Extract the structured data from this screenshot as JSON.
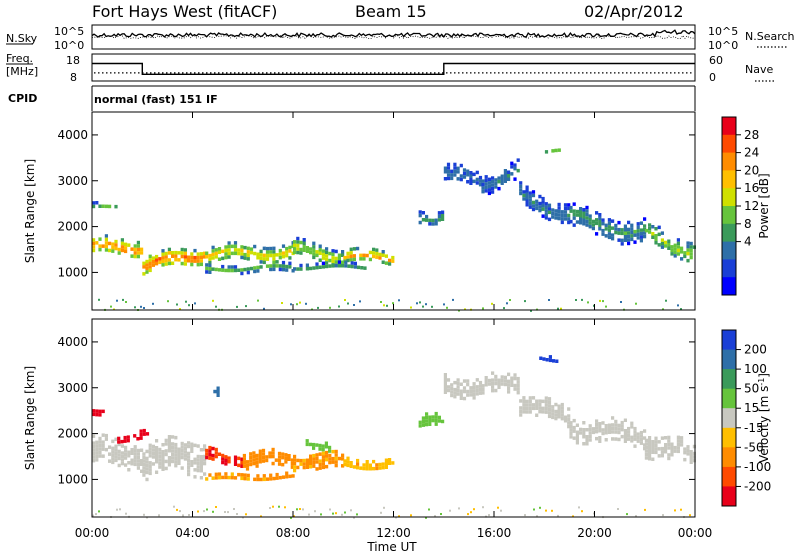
{
  "header": {
    "station": "Fort Hays West (fitACF)",
    "beam": "Beam 15",
    "date": "02/Apr/2012"
  },
  "noise_panel": {
    "left_label": "N.Sky",
    "right_label": "N.Search",
    "left_ticks": [
      "10^5",
      "10^0"
    ],
    "right_ticks": [
      "10^5",
      "10^0"
    ]
  },
  "freq_panel": {
    "left_label_line1": "Freq.",
    "left_label_line2": "[MHz]",
    "right_label": "Nave",
    "left_ticks": [
      "18",
      "8"
    ],
    "right_ticks": [
      "60",
      "0"
    ],
    "freq_steps": [
      {
        "start": 0.0,
        "end": 2.0,
        "value": 14.5
      },
      {
        "start": 2.0,
        "end": 14.0,
        "value": 10.5
      },
      {
        "start": 14.0,
        "end": 24.0,
        "value": 14.5
      }
    ],
    "nave_level": 18
  },
  "cpid": {
    "label": "CPID",
    "mode_text": "normal (fast) 151 IF"
  },
  "color_scales": {
    "power": {
      "label": "Power [dB]",
      "ticks": [
        "28",
        "24",
        "20",
        "16",
        "12",
        "8",
        "4"
      ],
      "colors": [
        "#e8001a",
        "#ff4a00",
        "#ff8c00",
        "#ffbf00",
        "#cfe000",
        "#66c43c",
        "#3a9a5a",
        "#2e6fa8",
        "#1a3fd6",
        "#0000ff"
      ]
    },
    "velocity": {
      "label": "Velocity [m s",
      "label_sup": "-1",
      "label_end": "]",
      "ticks": [
        "200",
        "100",
        "50",
        "15",
        "-15",
        "-50",
        "-100",
        "-200"
      ],
      "colors": [
        "#1a3fd6",
        "#2e6fa8",
        "#3a9a5a",
        "#66c43c",
        "#c8c8c0",
        "#ffbf00",
        "#ff8c00",
        "#ff4a00",
        "#e8001a"
      ]
    }
  },
  "x_axis": {
    "label": "Time UT",
    "ticks": [
      "00:00",
      "04:00",
      "08:00",
      "12:00",
      "16:00",
      "20:00",
      "00:00"
    ]
  },
  "chart_data": [
    {
      "type": "heatmap",
      "quantity": "power",
      "ylabel": "Slant Range [km]",
      "xlabel": "",
      "x_range_hours": [
        0,
        24
      ],
      "ylim": [
        180,
        4500
      ],
      "yticks": [
        "1000",
        "2000",
        "3000",
        "4000"
      ],
      "color_unit": "dB",
      "color_range": [
        0,
        30
      ],
      "echo_bands": [
        {
          "x": [
            0,
            2
          ],
          "center": [
            1550,
            1600
          ],
          "width": 380,
          "value": 22
        },
        {
          "x": [
            2,
            4.5
          ],
          "center": [
            1150,
            1450
          ],
          "width": 360,
          "value": 24
        },
        {
          "x": [
            4.5,
            8
          ],
          "center": [
            1400,
            1500
          ],
          "width": 340,
          "value": 18
        },
        {
          "x": [
            8,
            10
          ],
          "center": [
            1500,
            1380
          ],
          "width": 380,
          "value": 16
        },
        {
          "x": [
            10,
            12
          ],
          "center": [
            1380,
            1350
          ],
          "width": 260,
          "value": 22
        },
        {
          "x": [
            4.5,
            8
          ],
          "center": [
            1100,
            1150
          ],
          "width": 160,
          "value": 12
        },
        {
          "x": [
            8,
            11
          ],
          "center": [
            1150,
            1150
          ],
          "width": 150,
          "value": 10
        },
        {
          "x": [
            0,
            1
          ],
          "center": [
            2450,
            2500
          ],
          "width": 140,
          "value": 12
        },
        {
          "x": [
            13,
            14
          ],
          "center": [
            2250,
            2250
          ],
          "width": 300,
          "value": 10
        },
        {
          "x": [
            14,
            15.5
          ],
          "center": [
            3150,
            3000
          ],
          "width": 380,
          "value": 8
        },
        {
          "x": [
            15.5,
            17
          ],
          "center": [
            3000,
            3200
          ],
          "width": 420,
          "value": 8
        },
        {
          "x": [
            17,
            19
          ],
          "center": [
            2700,
            2300
          ],
          "width": 420,
          "value": 8
        },
        {
          "x": [
            19,
            22
          ],
          "center": [
            2200,
            1900
          ],
          "width": 460,
          "value": 10
        },
        {
          "x": [
            22,
            24
          ],
          "center": [
            1850,
            1500
          ],
          "width": 440,
          "value": 14
        },
        {
          "x": [
            17.9,
            18.6
          ],
          "center": [
            3650,
            3700
          ],
          "width": 120,
          "value": 14
        }
      ]
    },
    {
      "type": "heatmap",
      "quantity": "velocity",
      "ylabel": "Slant Range [km]",
      "xlabel": "Time UT",
      "x_range_hours": [
        0,
        24
      ],
      "ylim": [
        180,
        4500
      ],
      "yticks": [
        "1000",
        "2000",
        "3000",
        "4000"
      ],
      "color_unit": "m s-1",
      "color_range": [
        -250,
        250
      ],
      "echo_bands": [
        {
          "x": [
            0,
            2
          ],
          "center": [
            1550,
            1600
          ],
          "width": 600,
          "value": 0
        },
        {
          "x": [
            2,
            4.5
          ],
          "center": [
            1350,
            1600
          ],
          "width": 700,
          "value": 0
        },
        {
          "x": [
            1,
            2.2
          ],
          "center": [
            1950,
            1950
          ],
          "width": 220,
          "value": -220
        },
        {
          "x": [
            0,
            0.5
          ],
          "center": [
            2550,
            2550
          ],
          "width": 200,
          "value": -220
        },
        {
          "x": [
            4.5,
            6
          ],
          "center": [
            1550,
            1400
          ],
          "width": 260,
          "value": -200
        },
        {
          "x": [
            6,
            8
          ],
          "center": [
            1450,
            1450
          ],
          "width": 320,
          "value": -80
        },
        {
          "x": [
            8,
            10
          ],
          "center": [
            1450,
            1400
          ],
          "width": 320,
          "value": -60
        },
        {
          "x": [
            10,
            12
          ],
          "center": [
            1400,
            1330
          ],
          "width": 220,
          "value": -40
        },
        {
          "x": [
            8.5,
            9.5
          ],
          "center": [
            1750,
            1700
          ],
          "width": 180,
          "value": 30
        },
        {
          "x": [
            4.5,
            8
          ],
          "center": [
            1050,
            1100
          ],
          "width": 130,
          "value": -60
        },
        {
          "x": [
            4.7,
            5.1
          ],
          "center": [
            2900,
            2900
          ],
          "width": 180,
          "value": 180
        },
        {
          "x": [
            13,
            14
          ],
          "center": [
            2250,
            2250
          ],
          "width": 300,
          "value": 30
        },
        {
          "x": [
            14,
            15.5
          ],
          "center": [
            3150,
            3000
          ],
          "width": 420,
          "value": 0
        },
        {
          "x": [
            15.5,
            17
          ],
          "center": [
            3000,
            3200
          ],
          "width": 420,
          "value": 0
        },
        {
          "x": [
            17,
            19
          ],
          "center": [
            2700,
            2300
          ],
          "width": 440,
          "value": 0
        },
        {
          "x": [
            19,
            22
          ],
          "center": [
            2200,
            1900
          ],
          "width": 480,
          "value": 0
        },
        {
          "x": [
            22,
            24
          ],
          "center": [
            1850,
            1500
          ],
          "width": 460,
          "value": 0
        },
        {
          "x": [
            17.8,
            18.5
          ],
          "center": [
            3700,
            3650
          ],
          "width": 150,
          "value": 220
        }
      ]
    }
  ]
}
